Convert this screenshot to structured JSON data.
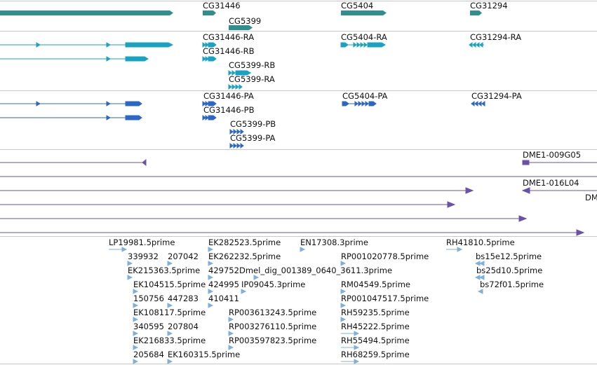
{
  "colors": {
    "gene": "#2f8f8f",
    "transcript": "#18a3c2",
    "protein": "#2c67c6",
    "clone": "#6a52a8",
    "est": "#7fb0dc"
  },
  "genes": [
    {
      "label": "CG31446"
    },
    {
      "label": "CG5399"
    },
    {
      "label": "CG5404"
    },
    {
      "label": "CG31294"
    }
  ],
  "transcripts": [
    {
      "label": "CG31446-RA"
    },
    {
      "label": "CG31446-RB"
    },
    {
      "label": "CG5399-RB"
    },
    {
      "label": "CG5399-RA"
    },
    {
      "label": "CG5404-RA"
    },
    {
      "label": "CG31294-RA"
    }
  ],
  "proteins": [
    {
      "label": "CG31446-PA"
    },
    {
      "label": "CG31446-PB"
    },
    {
      "label": "CG5399-PB"
    },
    {
      "label": "CG5399-PA"
    },
    {
      "label": "CG5404-PA"
    },
    {
      "label": "CG31294-PA"
    }
  ],
  "clones": [
    {
      "label": "DME1-009G05"
    },
    {
      "label": "DME1-016L04"
    },
    {
      "label": "DM"
    }
  ],
  "ests": [
    {
      "label": "LP19981.5prime"
    },
    {
      "label": "EK282523.5prime"
    },
    {
      "label": "EN17308.3prime"
    },
    {
      "label": "RH41810.5prime"
    },
    {
      "label": "339932"
    },
    {
      "label": "207042"
    },
    {
      "label": "EK262232.5prime"
    },
    {
      "label": "RP001020778.5prime"
    },
    {
      "label": "bs15e12.5prime"
    },
    {
      "label": "EK215363.5prime"
    },
    {
      "label": "429752"
    },
    {
      "label": "Dmel_dig_001389_0640_3611.3prime"
    },
    {
      "label": "bs25d10.5prime"
    },
    {
      "label": "EK104515.5prime"
    },
    {
      "label": "424995"
    },
    {
      "label": "IP09045.3prime"
    },
    {
      "label": "RM04549.5prime"
    },
    {
      "label": "bs72f01.5prime"
    },
    {
      "label": "150756"
    },
    {
      "label": "447283"
    },
    {
      "label": "410411"
    },
    {
      "label": "RP001047517.5prime"
    },
    {
      "label": "EK108117.5prime"
    },
    {
      "label": "RP003613243.5prime"
    },
    {
      "label": "RH59235.5prime"
    },
    {
      "label": "340595"
    },
    {
      "label": "207804"
    },
    {
      "label": "RP003276110.5prime"
    },
    {
      "label": "RH45222.5prime"
    },
    {
      "label": "EK216833.5prime"
    },
    {
      "label": "RP003597823.5prime"
    },
    {
      "label": "RH55494.5prime"
    },
    {
      "label": "205684"
    },
    {
      "label": "EK160315.5prime"
    },
    {
      "label": "RH68259.5prime"
    }
  ]
}
